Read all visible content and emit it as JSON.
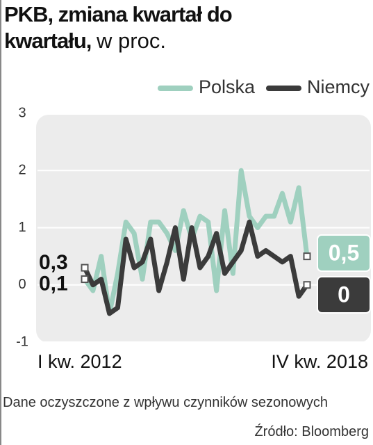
{
  "chart_data": {
    "type": "line",
    "title": "PKB, zmiana kwartał do kwartału,",
    "subtitle": "w proc.",
    "note": "Dane oczyszczone z wpływu czynników sezonowych",
    "source": "Źródło: Bloomberg",
    "categories": [
      "I kw. 2012",
      null,
      null,
      null,
      null,
      null,
      null,
      null,
      null,
      null,
      null,
      null,
      null,
      null,
      null,
      null,
      null,
      null,
      null,
      null,
      null,
      null,
      null,
      null,
      null,
      null,
      null,
      "IV kw. 2018"
    ],
    "ylim": [
      -1,
      3
    ],
    "yticks": [
      -1,
      0,
      1,
      2,
      3
    ],
    "grid": true,
    "legend": "top-right",
    "series": [
      {
        "name": "Polska",
        "color": "#9fd0bf",
        "values": [
          0.1,
          -0.1,
          0.5,
          -0.5,
          0.2,
          1.1,
          0.9,
          0.1,
          1.1,
          1.1,
          0.9,
          0.6,
          1.3,
          0.8,
          1.2,
          1.1,
          -0.1,
          1.3,
          0.2,
          2.0,
          1.2,
          1.0,
          1.2,
          1.2,
          1.6,
          1.1,
          1.7,
          0.5
        ],
        "value_labels": [
          "0,1",
          null,
          null,
          null,
          null,
          null,
          null,
          null,
          null,
          null,
          null,
          null,
          null,
          null,
          null,
          null,
          null,
          null,
          null,
          null,
          null,
          null,
          null,
          null,
          null,
          null,
          null,
          "0,5"
        ]
      },
      {
        "name": "Niemcy",
        "color": "#3b3b3b",
        "values": [
          0.3,
          0.0,
          0.1,
          -0.5,
          -0.4,
          0.8,
          0.3,
          0.4,
          0.8,
          -0.1,
          0.4,
          1.0,
          0.1,
          1.0,
          0.3,
          0.5,
          0.9,
          0.2,
          0.4,
          0.6,
          1.1,
          0.5,
          0.6,
          0.5,
          0.4,
          0.5,
          -0.2,
          0.0
        ],
        "value_labels": [
          "0,3",
          null,
          null,
          null,
          null,
          null,
          null,
          null,
          null,
          null,
          null,
          null,
          null,
          null,
          null,
          null,
          null,
          null,
          null,
          null,
          null,
          null,
          null,
          null,
          null,
          null,
          null,
          "0"
        ]
      }
    ]
  }
}
